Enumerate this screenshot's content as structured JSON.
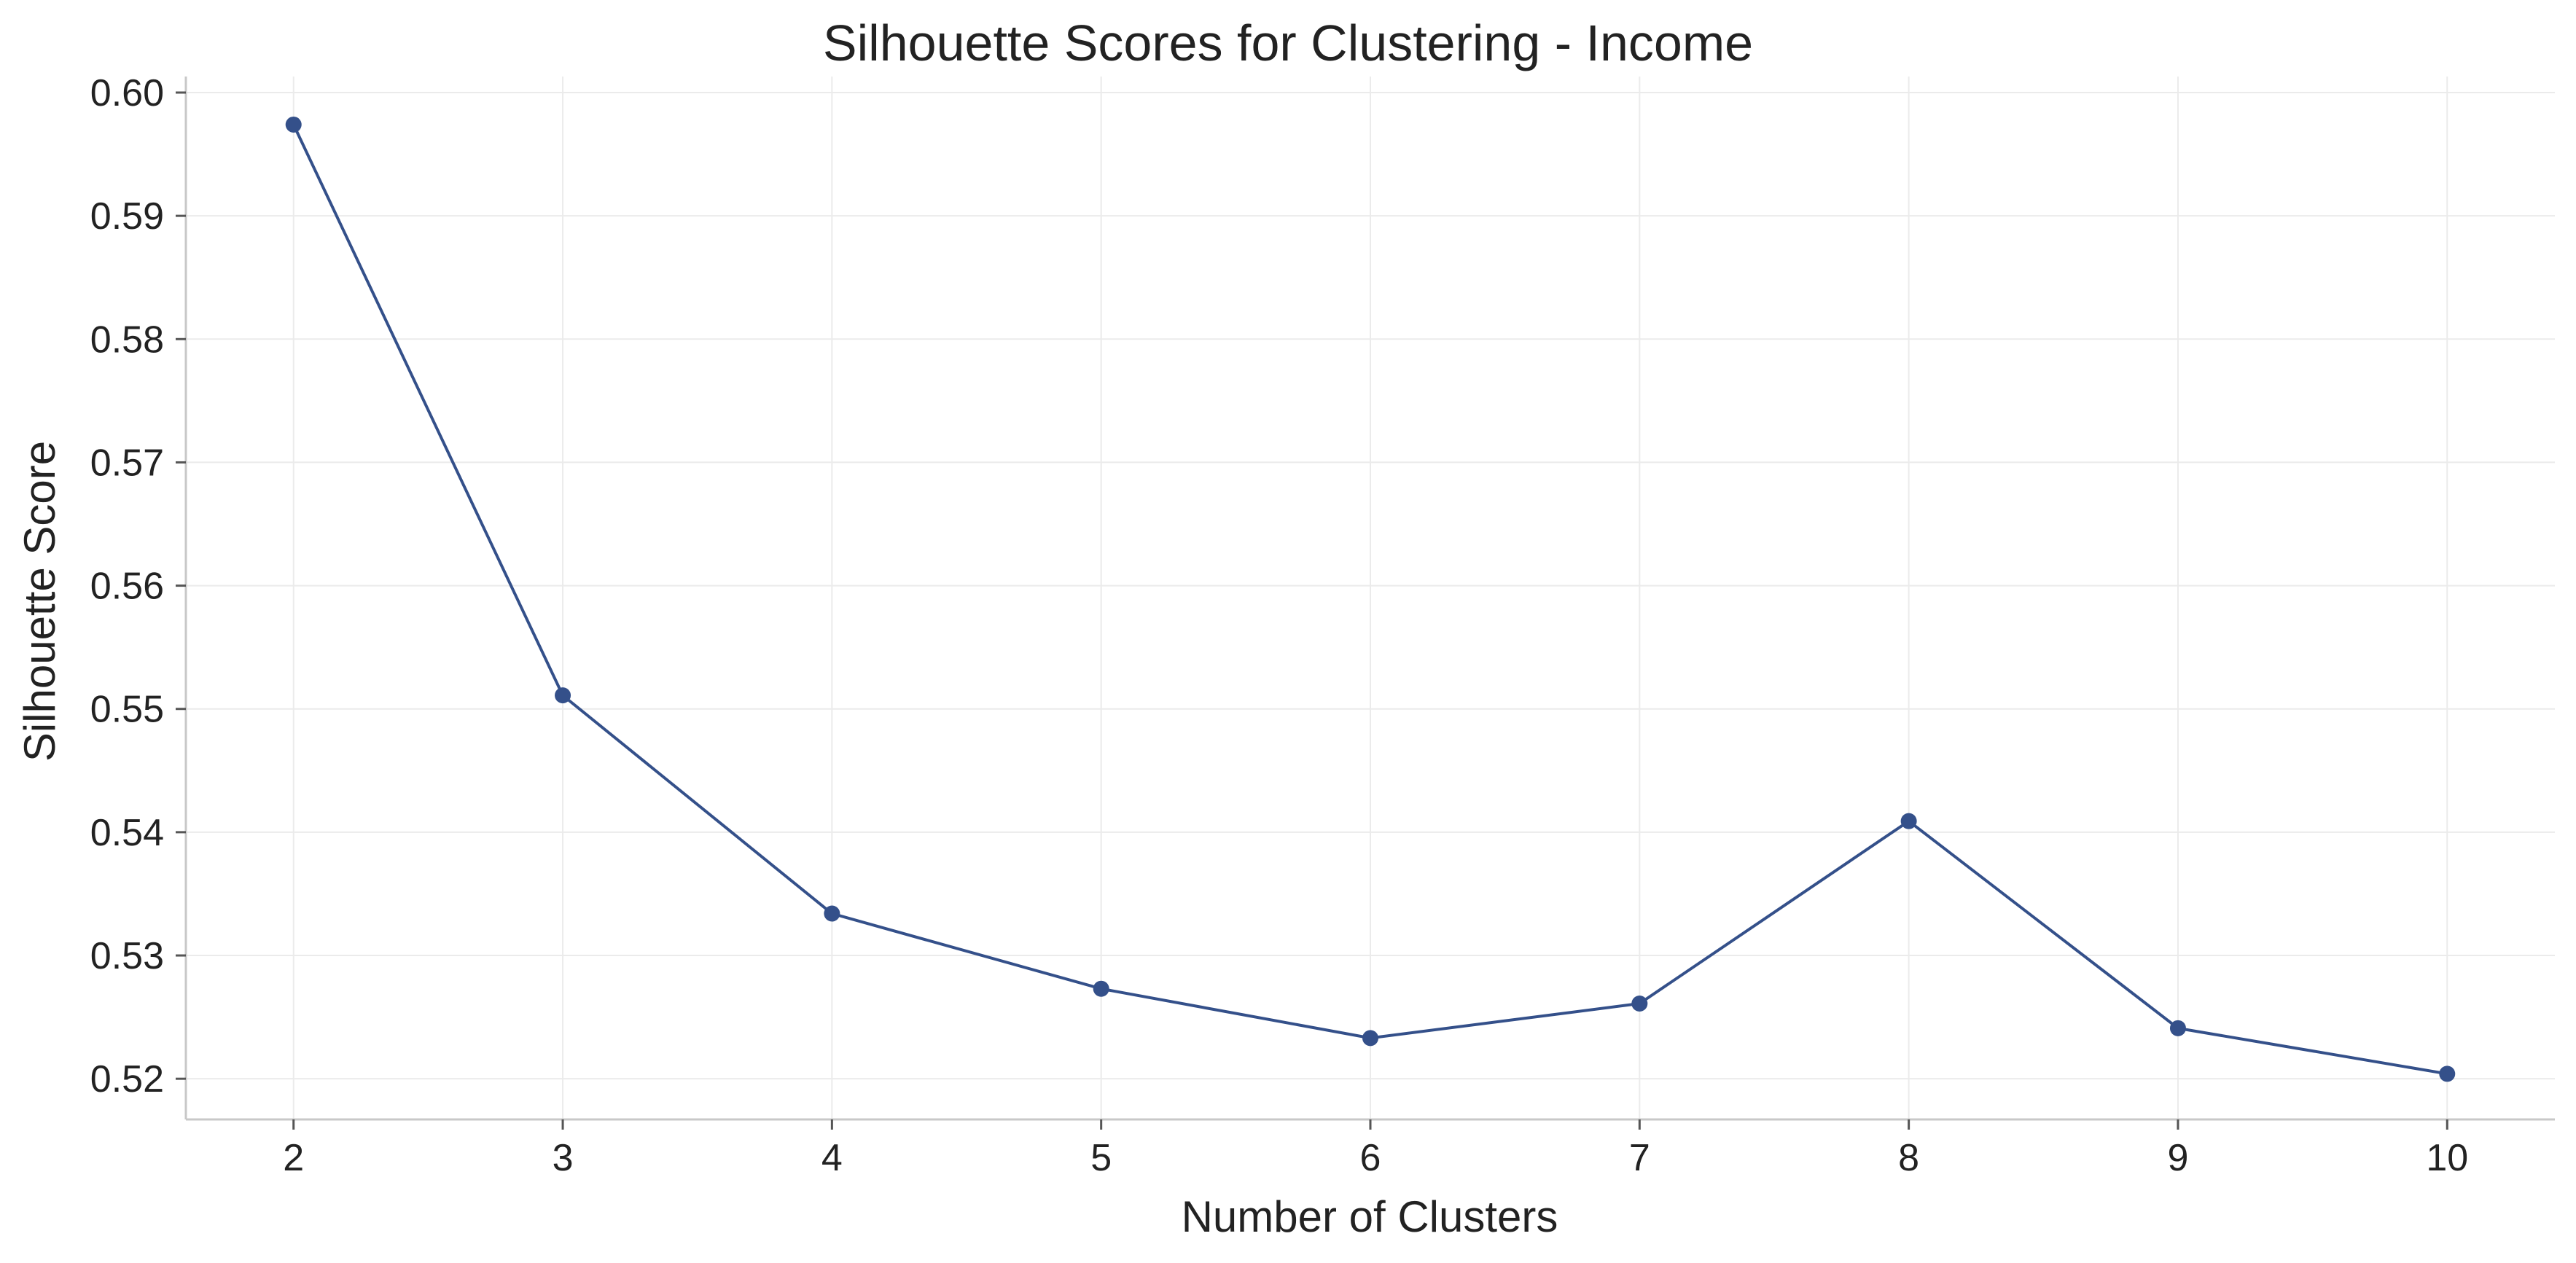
{
  "chart_data": {
    "type": "line",
    "title": "Silhouette Scores for Clustering - Income",
    "xlabel": "Number of Clusters",
    "ylabel": "Silhouette Score",
    "x": [
      2,
      3,
      4,
      5,
      6,
      7,
      8,
      9,
      10
    ],
    "series": [
      {
        "values": [
          0.5974,
          0.5511,
          0.5334,
          0.5273,
          0.5233,
          0.5261,
          0.5409,
          0.5241,
          0.5204
        ],
        "color": "#34508a"
      }
    ],
    "xticks": [
      "2",
      "3",
      "4",
      "5",
      "6",
      "7",
      "8",
      "9",
      "10"
    ],
    "yticks": [
      "0.52",
      "0.53",
      "0.54",
      "0.55",
      "0.56",
      "0.57",
      "0.58",
      "0.59",
      "0.60"
    ],
    "xlim": [
      1.6,
      10.4
    ],
    "ylim": [
      0.5167,
      0.6013
    ],
    "grid": true,
    "legend": "none"
  }
}
